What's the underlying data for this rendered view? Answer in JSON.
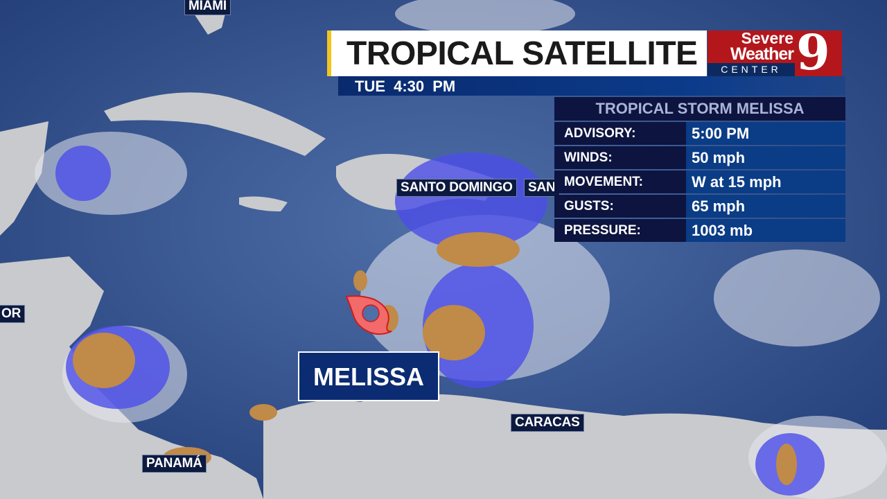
{
  "header": {
    "title": "TROPICAL SATELLITE",
    "time": "TUE  4:30 PM"
  },
  "logo": {
    "line1": "Severe",
    "line2": "Weather",
    "line3": "CENTER",
    "number": "9",
    "brand_color": "#b3171c"
  },
  "storm_panel": {
    "title": "TROPICAL STORM MELISSA",
    "rows": [
      {
        "label": "ADVISORY:",
        "value": "5:00 PM"
      },
      {
        "label": "WINDS:",
        "value": "50 mph"
      },
      {
        "label": "MOVEMENT:",
        "value": "W at 15 mph"
      },
      {
        "label": "GUSTS:",
        "value": "65 mph"
      },
      {
        "label": "PRESSURE:",
        "value": "1003 mb"
      }
    ]
  },
  "storm": {
    "name": "MELISSA",
    "icon": "tropical-storm-icon",
    "icon_color": "#f26a6a"
  },
  "cities": [
    "MIAMI",
    "SANTO DOMINGO",
    "SAN",
    "OR",
    "PANAMÁ",
    "CARACAS"
  ]
}
